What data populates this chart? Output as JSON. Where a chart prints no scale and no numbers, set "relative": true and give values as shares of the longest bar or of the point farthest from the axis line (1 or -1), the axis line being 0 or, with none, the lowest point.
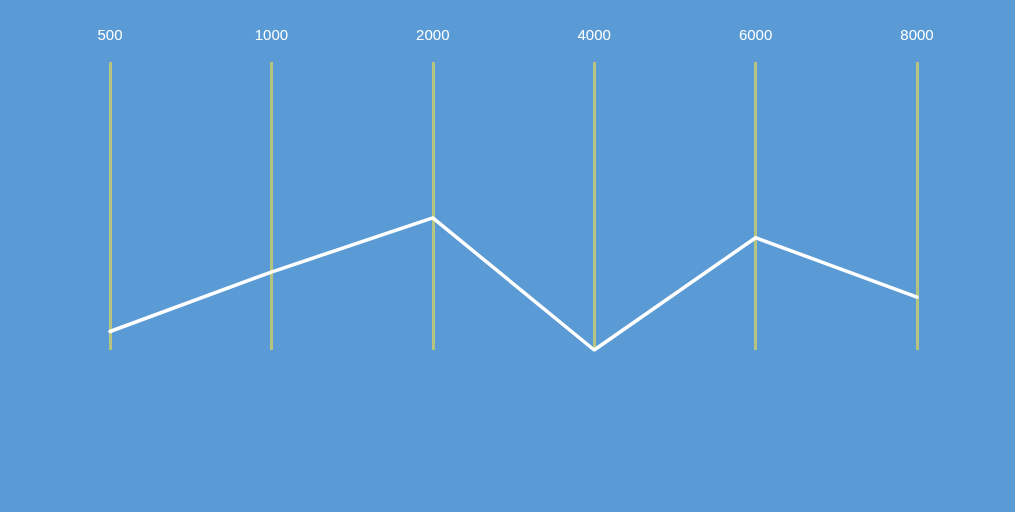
{
  "chart_data": {
    "type": "line",
    "relative": true,
    "categories": [
      "500",
      "1000",
      "2000",
      "4000",
      "6000",
      "8000"
    ],
    "series": [
      {
        "color": "#ffffff",
        "values": [
          0.14,
          0.59,
          1,
          0,
          0.85,
          0.4
        ]
      }
    ],
    "grid": "x",
    "marker": "none",
    "line_style": "solid"
  }
}
